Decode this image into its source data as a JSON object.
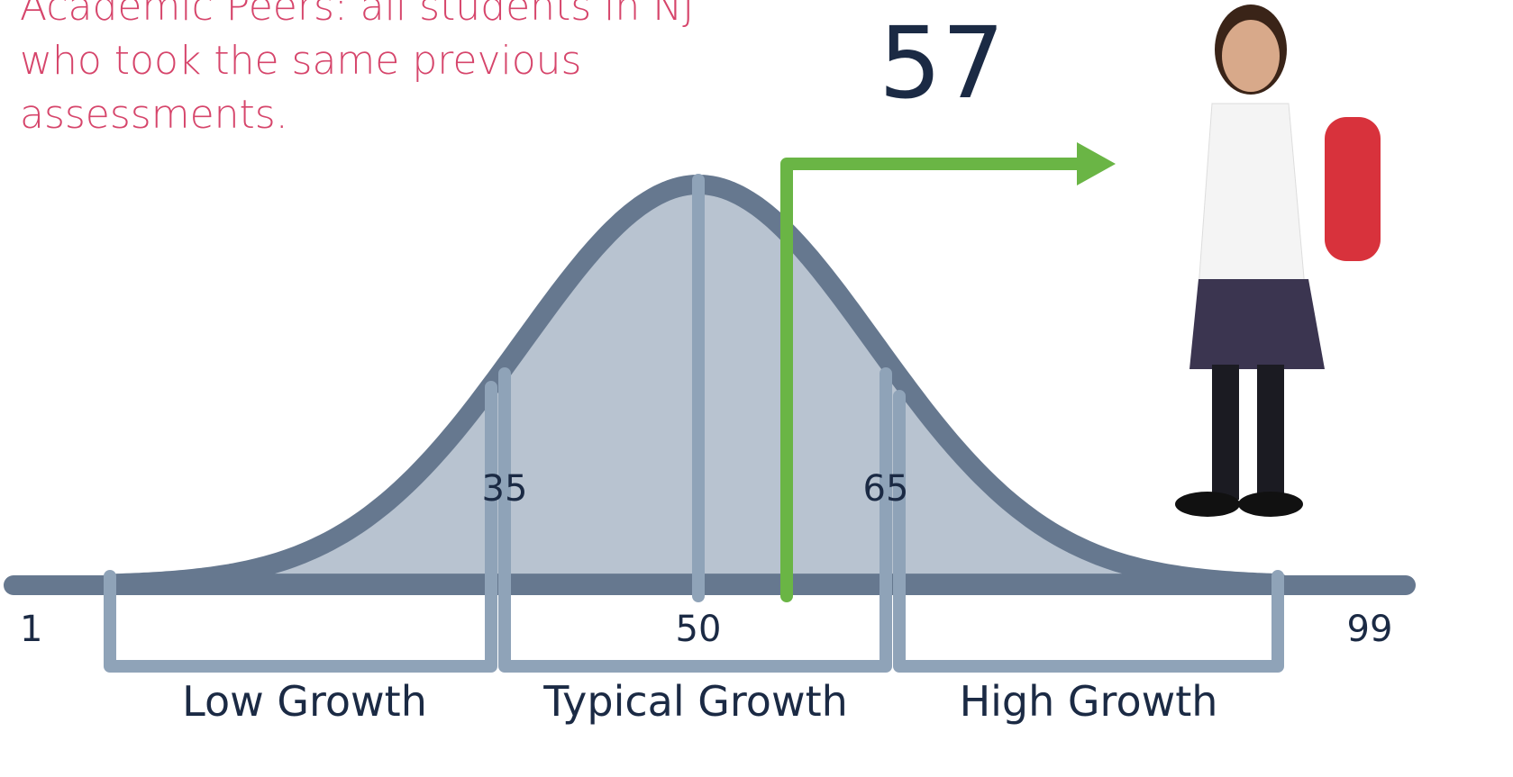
{
  "caption": {
    "lines": [
      "Academic Peers: all students in NJ",
      "who took the same previous",
      "assessments."
    ]
  },
  "score": "57",
  "scale": {
    "min": "1",
    "max": "99",
    "low_cut": "35",
    "median": "50",
    "high_cut": "65"
  },
  "groups": [
    "Low Growth",
    "Typical Growth",
    "High Growth"
  ]
}
